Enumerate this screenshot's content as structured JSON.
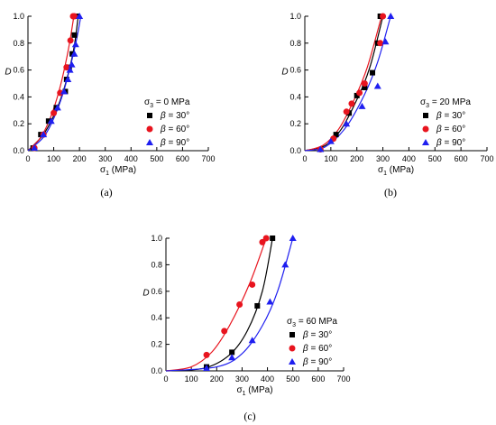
{
  "chart_data": [
    {
      "type": "scatter",
      "panel_label": "(a)",
      "xlabel": "σ1 (MPa)",
      "ylabel": "D",
      "xlim": [
        0,
        700
      ],
      "ylim": [
        0,
        1.0
      ],
      "xticks": [
        0,
        100,
        200,
        300,
        400,
        500,
        600,
        700
      ],
      "yticks": [
        0.0,
        0.2,
        0.4,
        0.6,
        0.8,
        1.0
      ],
      "legend_title": "σ3 = 0 MPa",
      "legend_position": "right",
      "series": [
        {
          "name": "β = 30°",
          "color": "#000000",
          "marker": "square",
          "points": [
            [
              20,
              0.02
            ],
            [
              50,
              0.12
            ],
            [
              80,
              0.22
            ],
            [
              110,
              0.32
            ],
            [
              145,
              0.44
            ],
            [
              150,
              0.53
            ],
            [
              160,
              0.62
            ],
            [
              172,
              0.72
            ],
            [
              180,
              0.86
            ],
            [
              190,
              1.0
            ]
          ],
          "fit": [
            [
              0,
              0
            ],
            [
              60,
              0.12
            ],
            [
              100,
              0.26
            ],
            [
              130,
              0.4
            ],
            [
              160,
              0.6
            ],
            [
              180,
              0.78
            ],
            [
              195,
              1.0
            ]
          ]
        },
        {
          "name": "β = 60°",
          "color": "#e8141e",
          "marker": "circle",
          "points": [
            [
              25,
              0.02
            ],
            [
              60,
              0.12
            ],
            [
              100,
              0.28
            ],
            [
              125,
              0.43
            ],
            [
              150,
              0.62
            ],
            [
              165,
              0.82
            ],
            [
              175,
              1.0
            ],
            [
              180,
              1.0
            ]
          ],
          "fit": [
            [
              0,
              0
            ],
            [
              50,
              0.1
            ],
            [
              90,
              0.26
            ],
            [
              120,
              0.44
            ],
            [
              145,
              0.64
            ],
            [
              165,
              0.84
            ],
            [
              178,
              1.0
            ]
          ]
        },
        {
          "name": "β = 90°",
          "color": "#1f1ff0",
          "marker": "triangle",
          "points": [
            [
              25,
              0.02
            ],
            [
              60,
              0.12
            ],
            [
              90,
              0.22
            ],
            [
              115,
              0.32
            ],
            [
              140,
              0.44
            ],
            [
              155,
              0.53
            ],
            [
              163,
              0.6
            ],
            [
              170,
              0.64
            ],
            [
              180,
              0.72
            ],
            [
              185,
              0.79
            ],
            [
              200,
              1.0
            ]
          ],
          "fit": [
            [
              0,
              0
            ],
            [
              60,
              0.1
            ],
            [
              100,
              0.24
            ],
            [
              135,
              0.42
            ],
            [
              165,
              0.63
            ],
            [
              190,
              0.84
            ],
            [
              205,
              1.0
            ]
          ]
        }
      ]
    },
    {
      "type": "scatter",
      "panel_label": "(b)",
      "xlabel": "σ1 (MPa)",
      "ylabel": "D",
      "xlim": [
        0,
        700
      ],
      "ylim": [
        0,
        1.0
      ],
      "xticks": [
        0,
        100,
        200,
        300,
        400,
        500,
        600,
        700
      ],
      "yticks": [
        0.0,
        0.2,
        0.4,
        0.6,
        0.8,
        1.0
      ],
      "legend_title": "σ3 = 20 MPa",
      "legend_position": "right",
      "series": [
        {
          "name": "β = 30°",
          "color": "#000000",
          "marker": "square",
          "points": [
            [
              120,
              0.12
            ],
            [
              170,
              0.28
            ],
            [
              200,
              0.41
            ],
            [
              230,
              0.47
            ],
            [
              260,
              0.58
            ],
            [
              280,
              0.8
            ],
            [
              290,
              1.0
            ]
          ],
          "fit": [
            [
              0,
              0
            ],
            [
              80,
              0.04
            ],
            [
              140,
              0.16
            ],
            [
              200,
              0.38
            ],
            [
              250,
              0.62
            ],
            [
              300,
              1.0
            ]
          ]
        },
        {
          "name": "β = 60°",
          "color": "#e8141e",
          "marker": "circle",
          "points": [
            [
              60,
              0.01
            ],
            [
              110,
              0.09
            ],
            [
              160,
              0.29
            ],
            [
              180,
              0.35
            ],
            [
              210,
              0.43
            ],
            [
              230,
              0.5
            ],
            [
              290,
              0.8
            ],
            [
              300,
              1.0
            ]
          ],
          "fit": [
            [
              0,
              0
            ],
            [
              70,
              0.04
            ],
            [
              130,
              0.16
            ],
            [
              190,
              0.38
            ],
            [
              240,
              0.62
            ],
            [
              295,
              1.0
            ]
          ]
        },
        {
          "name": "β = 90°",
          "color": "#1f1ff0",
          "marker": "triangle",
          "points": [
            [
              60,
              0.01
            ],
            [
              100,
              0.07
            ],
            [
              160,
              0.2
            ],
            [
              220,
              0.33
            ],
            [
              280,
              0.48
            ],
            [
              310,
              0.81
            ],
            [
              330,
              1.0
            ]
          ],
          "fit": [
            [
              0,
              0
            ],
            [
              80,
              0.03
            ],
            [
              160,
              0.18
            ],
            [
              230,
              0.42
            ],
            [
              280,
              0.66
            ],
            [
              330,
              1.0
            ]
          ]
        }
      ]
    },
    {
      "type": "scatter",
      "panel_label": "(c)",
      "xlabel": "σ1 (MPa)",
      "ylabel": "D",
      "xlim": [
        0,
        700
      ],
      "ylim": [
        0,
        1.0
      ],
      "xticks": [
        0,
        100,
        200,
        300,
        400,
        500,
        600,
        700
      ],
      "yticks": [
        0.0,
        0.2,
        0.4,
        0.6,
        0.8,
        1.0
      ],
      "legend_title": "σ3 = 60 MPa",
      "legend_position": "right",
      "series": [
        {
          "name": "β = 30°",
          "color": "#000000",
          "marker": "square",
          "points": [
            [
              160,
              0.03
            ],
            [
              260,
              0.14
            ],
            [
              360,
              0.49
            ],
            [
              420,
              1.0
            ]
          ],
          "fit": [
            [
              0,
              0
            ],
            [
              150,
              0.02
            ],
            [
              250,
              0.12
            ],
            [
              320,
              0.3
            ],
            [
              380,
              0.6
            ],
            [
              420,
              1.0
            ]
          ]
        },
        {
          "name": "β = 60°",
          "color": "#e8141e",
          "marker": "circle",
          "points": [
            [
              160,
              0.12
            ],
            [
              230,
              0.3
            ],
            [
              290,
              0.5
            ],
            [
              340,
              0.65
            ],
            [
              380,
              0.97
            ],
            [
              395,
              1.0
            ]
          ],
          "fit": [
            [
              0,
              0
            ],
            [
              100,
              0.03
            ],
            [
              180,
              0.14
            ],
            [
              250,
              0.34
            ],
            [
              330,
              0.66
            ],
            [
              395,
              1.0
            ]
          ]
        },
        {
          "name": "β = 90°",
          "color": "#1f1ff0",
          "marker": "triangle",
          "points": [
            [
              160,
              0.02
            ],
            [
              260,
              0.1
            ],
            [
              340,
              0.23
            ],
            [
              410,
              0.52
            ],
            [
              470,
              0.8
            ],
            [
              500,
              1.0
            ]
          ],
          "fit": [
            [
              0,
              0
            ],
            [
              200,
              0.03
            ],
            [
              300,
              0.13
            ],
            [
              380,
              0.34
            ],
            [
              440,
              0.6
            ],
            [
              500,
              1.0
            ]
          ]
        }
      ]
    }
  ]
}
